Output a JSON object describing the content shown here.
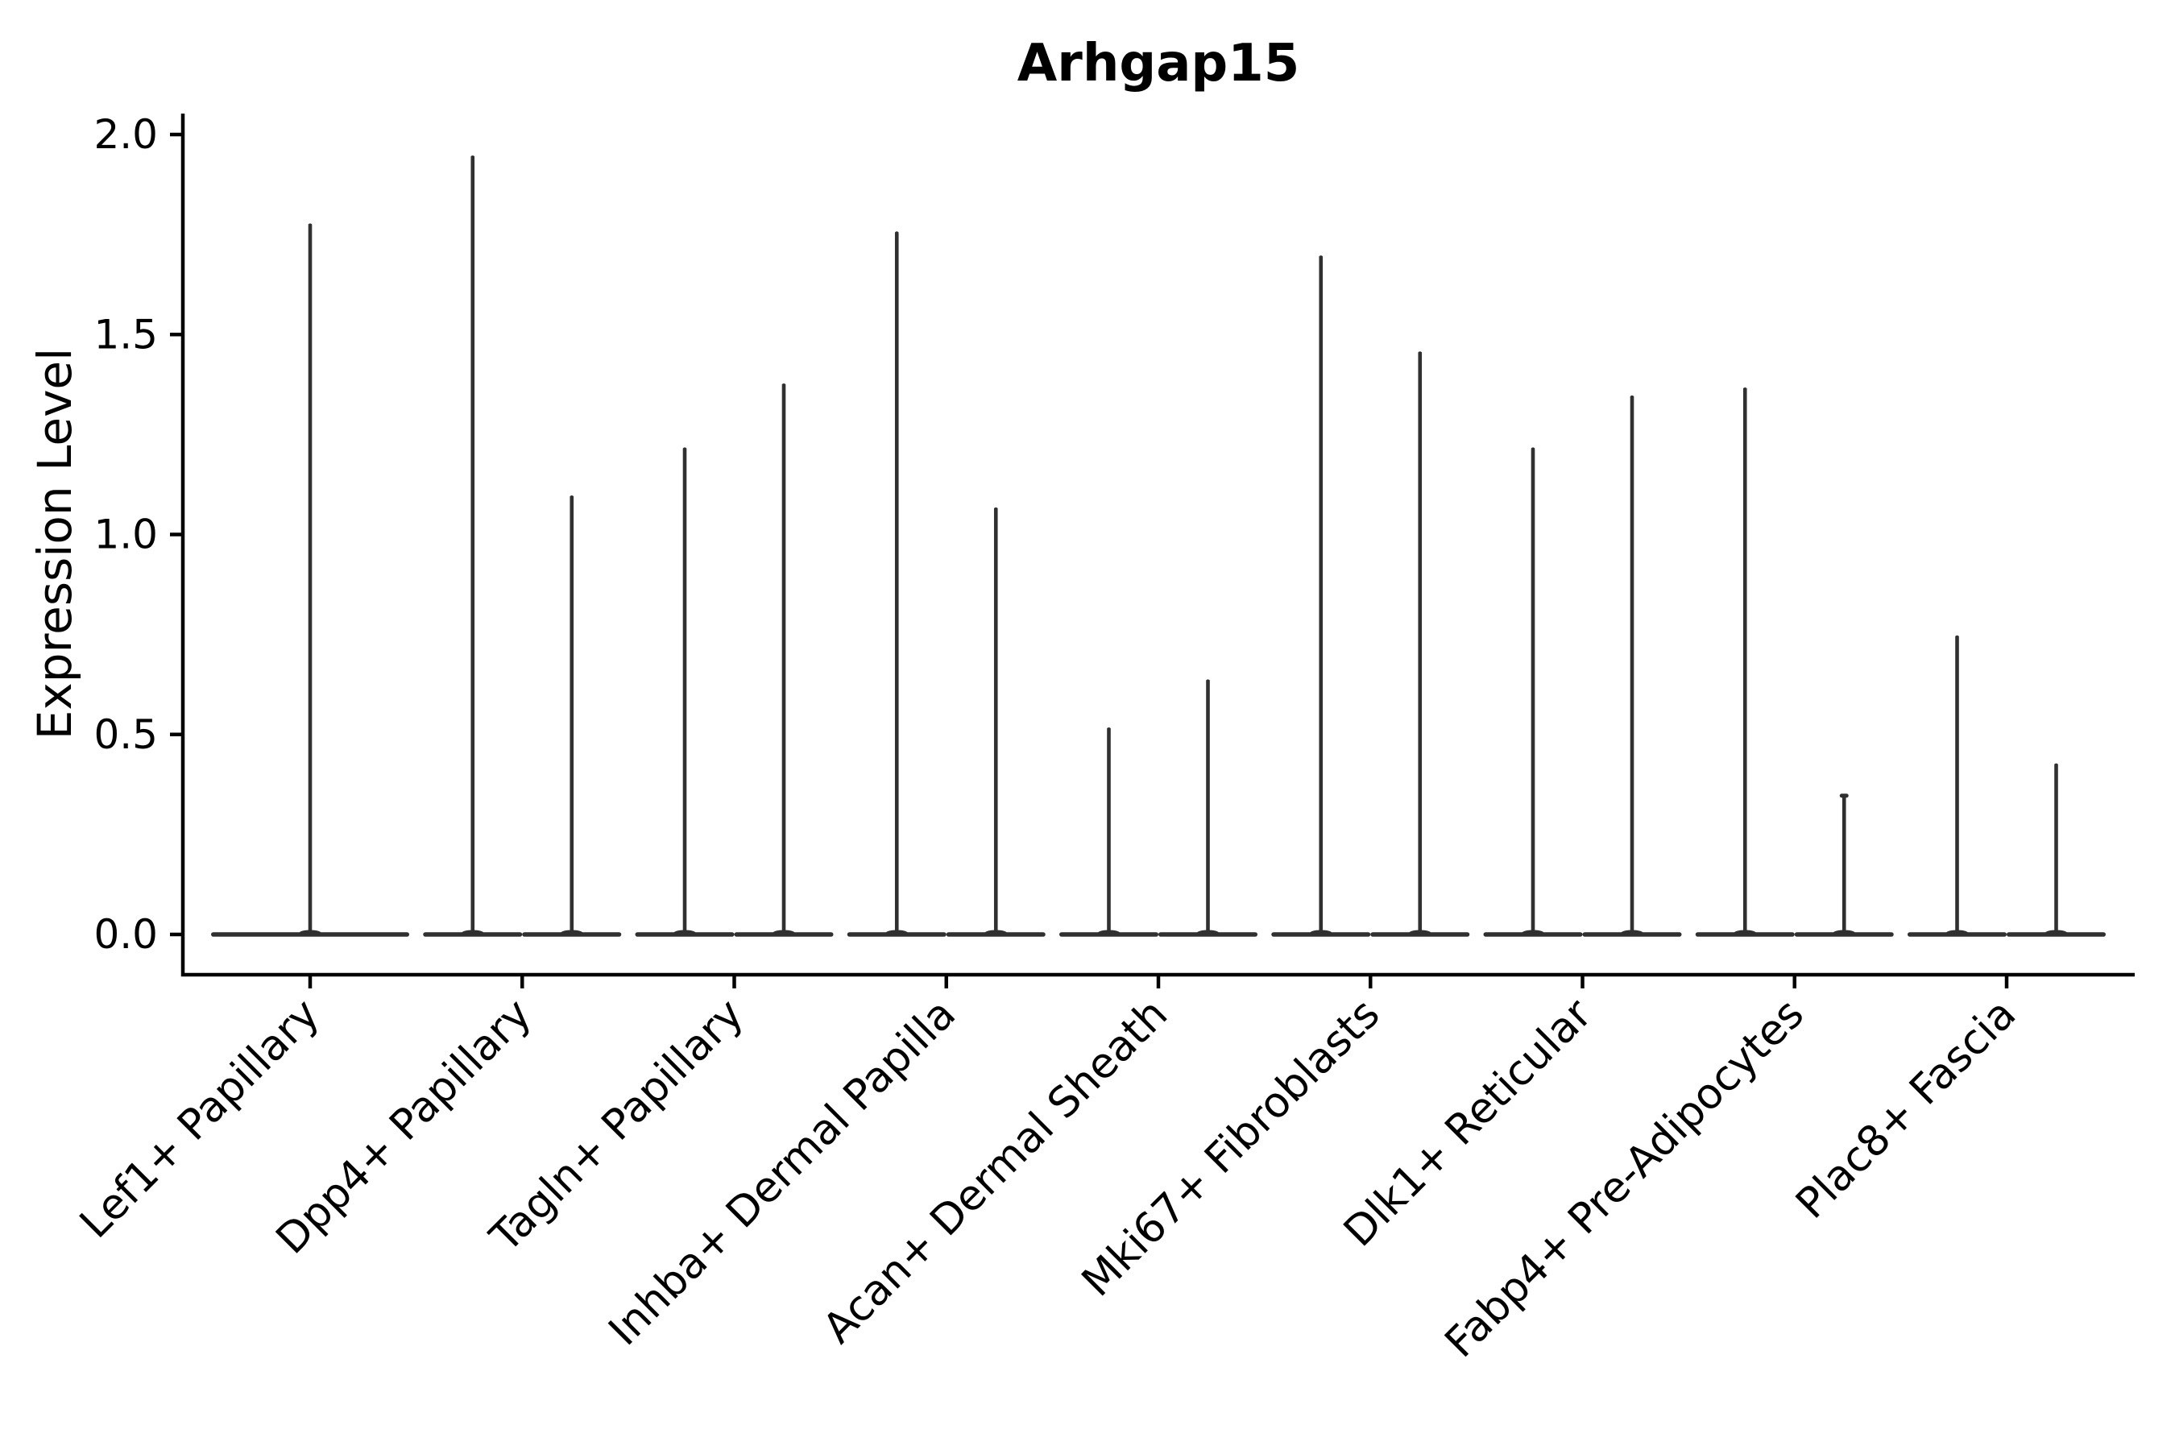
{
  "page": {
    "background": "#ffffff"
  },
  "chart_data": {
    "type": "violin",
    "title": "Arhgap15",
    "ylabel": "Expression Level",
    "xlabel": "",
    "grid": false,
    "legend": "none",
    "ylim": [
      -0.1,
      2.05
    ],
    "y_ticks": [
      {
        "value": 0.0,
        "label": "0.0"
      },
      {
        "value": 0.5,
        "label": "0.5"
      },
      {
        "value": 1.0,
        "label": "1.0"
      },
      {
        "value": 1.5,
        "label": "1.5"
      },
      {
        "value": 2.0,
        "label": "2.0"
      }
    ],
    "categories": [
      "Lef1+ Papillary",
      "Dpp4+ Papillary",
      "Tagln+ Papillary",
      "Inhba+ Dermal Papilla",
      "Acan+ Dermal Sheath",
      "Mki67+ Fibroblasts",
      "Dlk1+ Reticular",
      "Fabp4+ Pre-Adipocytes",
      "Plac8+ Fascia"
    ],
    "violins": [
      {
        "category": "Lef1+ Papillary",
        "spikes": [
          {
            "side": "center",
            "max": 1.78
          }
        ]
      },
      {
        "category": "Dpp4+ Papillary",
        "spikes": [
          {
            "side": "left",
            "max": 1.95
          },
          {
            "side": "right",
            "max": 1.1
          }
        ]
      },
      {
        "category": "Tagln+ Papillary",
        "spikes": [
          {
            "side": "left",
            "max": 1.22
          },
          {
            "side": "right",
            "max": 1.38
          }
        ]
      },
      {
        "category": "Inhba+ Dermal Papilla",
        "spikes": [
          {
            "side": "left",
            "max": 1.76
          },
          {
            "side": "right",
            "max": 1.07
          }
        ]
      },
      {
        "category": "Acan+ Dermal Sheath",
        "spikes": [
          {
            "side": "left",
            "max": 0.52
          },
          {
            "side": "right",
            "max": 0.64
          }
        ]
      },
      {
        "category": "Mki67+ Fibroblasts",
        "spikes": [
          {
            "side": "left",
            "max": 1.7
          },
          {
            "side": "right",
            "max": 1.46
          }
        ]
      },
      {
        "category": "Dlk1+ Reticular",
        "spikes": [
          {
            "side": "left",
            "max": 1.22
          },
          {
            "side": "right",
            "max": 1.35
          }
        ]
      },
      {
        "category": "Fabp4+ Pre-Adipocytes",
        "spikes": [
          {
            "side": "left",
            "max": 1.37
          },
          {
            "side": "right",
            "max": 0.35,
            "tip_cap": true
          }
        ]
      },
      {
        "category": "Plac8+ Fascia",
        "spikes": [
          {
            "side": "left",
            "max": 0.75
          },
          {
            "side": "right",
            "max": 0.43
          }
        ]
      }
    ],
    "colors": {
      "violin": "#303030",
      "axis": "#000000",
      "text": "#000000",
      "background": "#ffffff"
    }
  }
}
